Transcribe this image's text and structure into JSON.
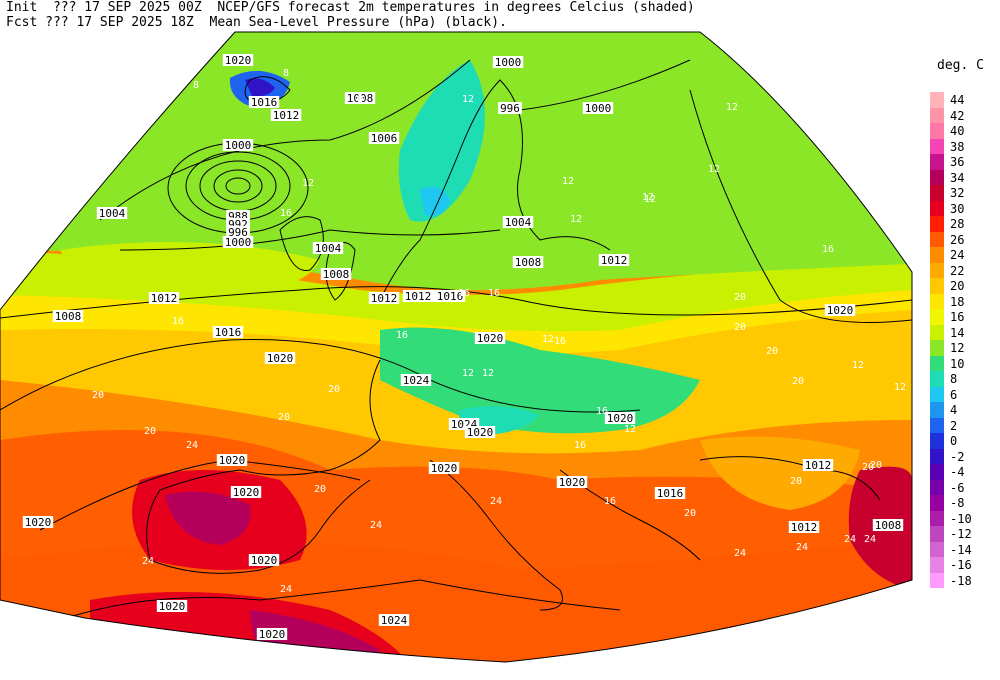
{
  "header": {
    "init_line": "Init  ??? 17 SEP 2025 00Z  NCEP/GFS forecast 2m temperatures in degrees Celcius (shaded)",
    "fcst_line": "Fcst ??? 17 SEP 2025 18Z  Mean Sea-Level Pressure (hPa) (black)."
  },
  "legend": {
    "unit": "deg. C",
    "entries": [
      {
        "label": "44",
        "color": "#ffb3b8"
      },
      {
        "label": "42",
        "color": "#ff94a8"
      },
      {
        "label": "40",
        "color": "#ff78a8"
      },
      {
        "label": "38",
        "color": "#f545b4"
      },
      {
        "label": "36",
        "color": "#c8148c"
      },
      {
        "label": "34",
        "color": "#b4005a"
      },
      {
        "label": "32",
        "color": "#c8002d"
      },
      {
        "label": "30",
        "color": "#e6001e"
      },
      {
        "label": "28",
        "color": "#ff1e00"
      },
      {
        "label": "26",
        "color": "#ff5a00"
      },
      {
        "label": "24",
        "color": "#ff8c00"
      },
      {
        "label": "22",
        "color": "#ffaa00"
      },
      {
        "label": "20",
        "color": "#ffc800"
      },
      {
        "label": "18",
        "color": "#ffe600"
      },
      {
        "label": "16",
        "color": "#f0f500"
      },
      {
        "label": "14",
        "color": "#c8f000"
      },
      {
        "label": "12",
        "color": "#8ce628"
      },
      {
        "label": "10",
        "color": "#32dc78"
      },
      {
        "label": "8",
        "color": "#1edcb4"
      },
      {
        "label": "6",
        "color": "#1ec8f0"
      },
      {
        "label": "4",
        "color": "#1e96f0"
      },
      {
        "label": "2",
        "color": "#1e64f0"
      },
      {
        "label": "0",
        "color": "#1e32dc"
      },
      {
        "label": "-2",
        "color": "#3214c8"
      },
      {
        "label": "-4",
        "color": "#5a00b4"
      },
      {
        "label": "-6",
        "color": "#7800aa"
      },
      {
        "label": "-8",
        "color": "#9600a0"
      },
      {
        "label": "-10",
        "color": "#aa1eaa"
      },
      {
        "label": "-12",
        "color": "#be46be"
      },
      {
        "label": "-14",
        "color": "#d264d2"
      },
      {
        "label": "-16",
        "color": "#e682e6"
      },
      {
        "label": "-18",
        "color": "#ff9bff"
      }
    ]
  },
  "map": {
    "pressure_labels": [
      "1020",
      "1016",
      "1012",
      "1008",
      "1000",
      "1006",
      "1000",
      "988",
      "992",
      "996",
      "1000",
      "1004",
      "1004",
      "1008",
      "1012",
      "1008",
      "1016",
      "1020",
      "1012",
      "1024",
      "1024",
      "1020",
      "1004",
      "1008",
      "1012",
      "1000",
      "996",
      "1012",
      "1020",
      "1020",
      "1020",
      "1020",
      "1020",
      "1020",
      "1020",
      "1024",
      "1020",
      "1020",
      "1012",
      "1012",
      "1016",
      "1008",
      "1016",
      "1012",
      "1020",
      "1020"
    ],
    "temperature_labels": [
      "8",
      "4",
      "8",
      "12",
      "12",
      "12",
      "16",
      "16",
      "16",
      "16",
      "16",
      "20",
      "20",
      "20",
      "24",
      "24",
      "24",
      "24",
      "24",
      "20",
      "20",
      "16",
      "16",
      "12",
      "12",
      "12",
      "12",
      "12",
      "12",
      "12",
      "8",
      "20",
      "20",
      "24",
      "24",
      "16",
      "20",
      "20",
      "20",
      "20",
      "12",
      "12",
      "16",
      "12",
      "20",
      "24",
      "24",
      "20",
      "16",
      "12"
    ]
  }
}
